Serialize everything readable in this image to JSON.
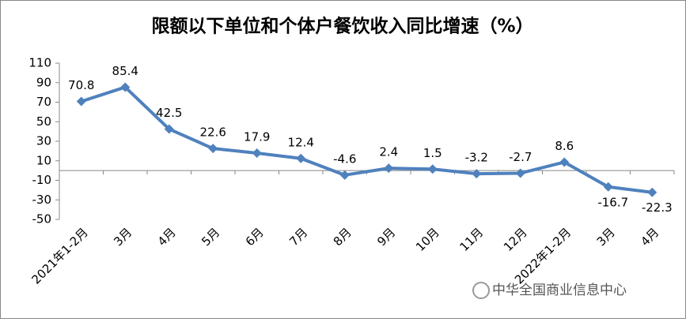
{
  "chart_data": {
    "type": "line",
    "title": "限额以下单位和个体户餐饮收入同比增速（%）",
    "categories": [
      "2021年1-2月",
      "3月",
      "4月",
      "5月",
      "6月",
      "7月",
      "8月",
      "9月",
      "10月",
      "11月",
      "12月",
      "2022年1-2月",
      "3月",
      "4月"
    ],
    "values": [
      70.8,
      85.4,
      42.5,
      22.6,
      17.9,
      12.4,
      -4.6,
      2.4,
      1.5,
      -3.2,
      -2.7,
      8.6,
      -16.7,
      -22.3
    ],
    "color": "#4f81bd",
    "ylim": [
      -50,
      110
    ],
    "yticks": [
      -50,
      -30,
      -10,
      10,
      30,
      50,
      70,
      90,
      110
    ],
    "grid": false,
    "watermark": "中华全国商业信息中心"
  }
}
